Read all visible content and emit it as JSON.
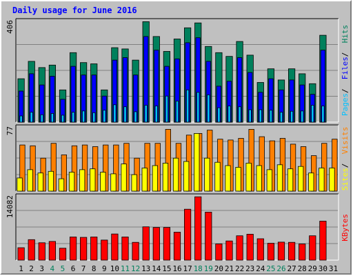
{
  "title": "Daily usage for June 2016",
  "colors": {
    "hits": "#00805c",
    "files": "#0000ff",
    "pages": "#00c0ff",
    "visits": "#ff8000",
    "sites": "#ffff00",
    "kbytes": "#ff0000",
    "title": "#0000ff",
    "weekend_day": "#00805c",
    "weekday": "#000000"
  },
  "chart_data": [
    {
      "type": "bar",
      "panel": "top",
      "ymax_label": "406",
      "ylim": [
        0,
        406
      ],
      "legend": [
        "Pages",
        "Files",
        "Hits"
      ],
      "categories": [
        "1",
        "2",
        "3",
        "4",
        "5",
        "6",
        "7",
        "8",
        "9",
        "10",
        "11",
        "12",
        "13",
        "14",
        "15",
        "16",
        "17",
        "18",
        "19",
        "20",
        "21",
        "22",
        "23",
        "24",
        "25",
        "26",
        "27",
        "28",
        "29",
        "30",
        "31"
      ],
      "series": [
        {
          "name": "Hits",
          "values": [
            175,
            245,
            220,
            230,
            130,
            280,
            240,
            235,
            130,
            300,
            295,
            250,
            405,
            345,
            285,
            335,
            380,
            400,
            305,
            280,
            265,
            325,
            270,
            160,
            215,
            170,
            215,
            195,
            155,
            350,
            null
          ]
        },
        {
          "name": "Files",
          "values": [
            125,
            195,
            150,
            185,
            92,
            225,
            190,
            190,
            105,
            250,
            260,
            190,
            345,
            290,
            225,
            255,
            320,
            340,
            245,
            145,
            165,
            260,
            200,
            120,
            175,
            130,
            170,
            150,
            112,
            290,
            null
          ]
        },
        {
          "name": "Pages",
          "values": [
            25,
            40,
            30,
            35,
            28,
            40,
            45,
            38,
            48,
            70,
            62,
            42,
            68,
            65,
            105,
            85,
            130,
            120,
            110,
            58,
            65,
            62,
            50,
            50,
            48,
            40,
            44,
            45,
            68,
            65,
            null
          ]
        }
      ]
    },
    {
      "type": "bar",
      "panel": "middle",
      "ymax_label": "77",
      "ylim": [
        0,
        77
      ],
      "legend": [
        "Sites",
        "Visits"
      ],
      "categories": [
        "1",
        "2",
        "3",
        "4",
        "5",
        "6",
        "7",
        "8",
        "9",
        "10",
        "11",
        "12",
        "13",
        "14",
        "15",
        "16",
        "17",
        "18",
        "19",
        "20",
        "21",
        "22",
        "23",
        "24",
        "25",
        "26",
        "27",
        "28",
        "29",
        "30",
        "31"
      ],
      "series": [
        {
          "name": "Visits",
          "values": [
            56,
            55,
            40,
            58,
            44,
            55,
            56,
            54,
            56,
            56,
            58,
            40,
            58,
            58,
            75,
            58,
            68,
            70,
            74,
            63,
            62,
            64,
            75,
            66,
            61,
            64,
            57,
            54,
            43,
            58,
            63
          ]
        },
        {
          "name": "Sites",
          "values": [
            16,
            26,
            22,
            24,
            15,
            23,
            26,
            27,
            23,
            21,
            33,
            20,
            28,
            31,
            34,
            40,
            36,
            70,
            40,
            35,
            31,
            29,
            34,
            31,
            26,
            32,
            27,
            30,
            22,
            28,
            28
          ]
        }
      ]
    },
    {
      "type": "bar",
      "panel": "bottom",
      "ymax_label": "14082",
      "ylim": [
        0,
        14082
      ],
      "legend": [
        "KBytes"
      ],
      "categories": [
        "1",
        "2",
        "3",
        "4",
        "5",
        "6",
        "7",
        "8",
        "9",
        "10",
        "11",
        "12",
        "13",
        "14",
        "15",
        "16",
        "17",
        "18",
        "19",
        "20",
        "21",
        "22",
        "23",
        "24",
        "25",
        "26",
        "27",
        "28",
        "29",
        "30",
        "31"
      ],
      "series": [
        {
          "name": "KBytes",
          "values": [
            2750,
            4550,
            3850,
            4150,
            2650,
            5150,
            5050,
            5150,
            4450,
            5800,
            5150,
            3950,
            7400,
            7250,
            7250,
            6200,
            11300,
            14050,
            10650,
            3600,
            4250,
            5400,
            5750,
            4750,
            3750,
            4000,
            3950,
            3600,
            5400,
            8650,
            null
          ]
        }
      ]
    }
  ],
  "weekend_days": [
    4,
    5,
    11,
    12,
    18,
    19,
    25,
    26
  ]
}
